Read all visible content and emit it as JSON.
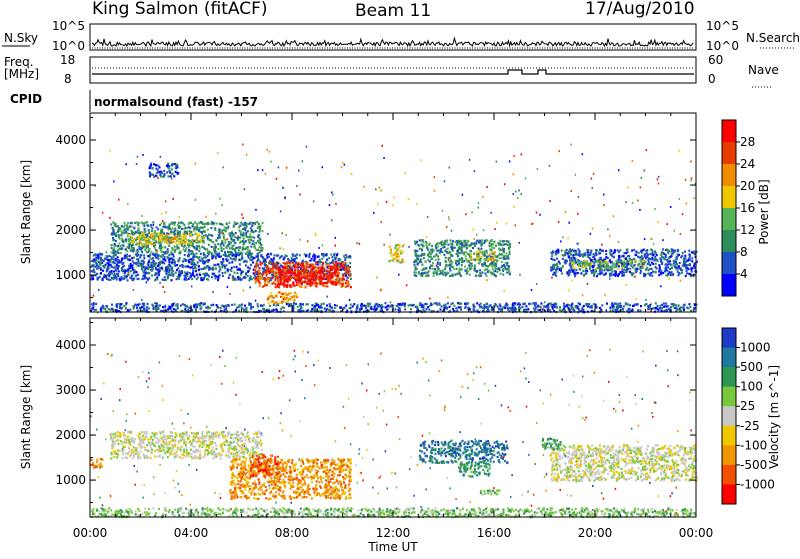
{
  "header": {
    "station": "King Salmon (fitACF)",
    "beam": "Beam 11",
    "date": "17/Aug/2010"
  },
  "top_panels": {
    "nsky_label": "N.Sky",
    "nsearch_label": "N.Search",
    "nsky_ticks": [
      "10^5",
      "10^0"
    ],
    "nsearch_ticks": [
      "10^5",
      "10^0"
    ],
    "freq_label": "Freq.",
    "freq_unit": "[MHz]",
    "freq_ticks": [
      "18",
      "8"
    ],
    "nave_label": "Nave",
    "nave_ticks": [
      "60",
      "0"
    ],
    "cpid_label": "CPID",
    "cpid_value": "normalsound (fast) -157"
  },
  "chart_data": [
    {
      "type": "heatmap",
      "name": "power",
      "ylabel": "Slant Range [km]",
      "xlabel": "Time UT",
      "xlim": [
        0,
        24
      ],
      "ylim": [
        180,
        4600
      ],
      "yticks": [
        "1000",
        "2000",
        "3000",
        "4000"
      ],
      "colorbar": {
        "label": "Power [dB]",
        "ticks": [
          "4",
          "8",
          "12",
          "16",
          "20",
          "24",
          "28"
        ],
        "colors": [
          "#0000ff",
          "#1e50c8",
          "#2d8c5a",
          "#55b455",
          "#f0c800",
          "#f08c00",
          "#e63c00",
          "#ff0000"
        ]
      },
      "regions": [
        {
          "t0": 0.0,
          "t1": 24.0,
          "r0": 200,
          "r1": 400,
          "level": 1
        },
        {
          "t0": 0.0,
          "t1": 10.3,
          "r0": 900,
          "r1": 1500,
          "level": 1
        },
        {
          "t0": 0.8,
          "t1": 6.8,
          "r0": 1500,
          "r1": 2200,
          "level": 2
        },
        {
          "t0": 1.5,
          "t1": 4.5,
          "r0": 1700,
          "r1": 1950,
          "level": 4
        },
        {
          "t0": 6.5,
          "t1": 10.3,
          "r0": 750,
          "r1": 1300,
          "level": 6
        },
        {
          "t0": 7.4,
          "t1": 9.8,
          "r0": 800,
          "r1": 1200,
          "level": 7
        },
        {
          "t0": 7.0,
          "t1": 8.2,
          "r0": 400,
          "r1": 650,
          "level": 5
        },
        {
          "t0": 11.8,
          "t1": 12.4,
          "r0": 1300,
          "r1": 1700,
          "level": 4
        },
        {
          "t0": 12.8,
          "t1": 16.6,
          "r0": 1000,
          "r1": 1800,
          "level": 2
        },
        {
          "t0": 15.0,
          "t1": 16.0,
          "r0": 1350,
          "r1": 1550,
          "level": 4
        },
        {
          "t0": 18.2,
          "t1": 24.0,
          "r0": 1000,
          "r1": 1600,
          "level": 1
        },
        {
          "t0": 19.0,
          "t1": 22.0,
          "r0": 1150,
          "r1": 1350,
          "level": 3
        },
        {
          "t0": 2.3,
          "t1": 3.5,
          "r0": 3200,
          "r1": 3500,
          "level": 1
        }
      ]
    },
    {
      "type": "heatmap",
      "name": "velocity",
      "ylabel": "Slant Range [km]",
      "xlabel": "Time UT",
      "xlim": [
        0,
        24
      ],
      "ylim": [
        180,
        4600
      ],
      "yticks": [
        "1000",
        "2000",
        "3000",
        "4000"
      ],
      "xticks": [
        "00:00",
        "04:00",
        "08:00",
        "12:00",
        "16:00",
        "20:00",
        "00:00"
      ],
      "colorbar": {
        "label": "Velocity [m s^-1]",
        "ticks": [
          "1000",
          "500",
          "100",
          "25",
          "-25",
          "-100",
          "-500",
          "-1000"
        ],
        "colors": [
          "#1e3cc8",
          "#1e78a0",
          "#2d9650",
          "#78c83c",
          "#c8c8c8",
          "#f0c800",
          "#f09600",
          "#f05000",
          "#ff0000"
        ]
      },
      "regions": [
        {
          "t0": 0.0,
          "t1": 24.0,
          "r0": 200,
          "r1": 400,
          "level": 3
        },
        {
          "t0": 0.8,
          "t1": 6.8,
          "r0": 1500,
          "r1": 2100,
          "level": 4
        },
        {
          "t0": 5.5,
          "t1": 10.3,
          "r0": 600,
          "r1": 1500,
          "level": 6
        },
        {
          "t0": 6.3,
          "t1": 7.5,
          "r0": 1100,
          "r1": 1600,
          "level": 7
        },
        {
          "t0": 13.0,
          "t1": 16.5,
          "r0": 1400,
          "r1": 1900,
          "level": 1
        },
        {
          "t0": 14.5,
          "t1": 15.8,
          "r0": 1100,
          "r1": 1400,
          "level": 2
        },
        {
          "t0": 15.4,
          "t1": 16.2,
          "r0": 700,
          "r1": 800,
          "level": 3
        },
        {
          "t0": 18.2,
          "t1": 24.0,
          "r0": 1000,
          "r1": 1800,
          "level": 4
        },
        {
          "t0": 17.8,
          "t1": 18.6,
          "r0": 1700,
          "r1": 1950,
          "level": 2
        },
        {
          "t0": 0.0,
          "t1": 0.5,
          "r0": 1300,
          "r1": 1500,
          "level": 6
        }
      ]
    }
  ],
  "time_axis": {
    "label": "Time UT",
    "ticks": [
      "00:00",
      "04:00",
      "08:00",
      "12:00",
      "16:00",
      "20:00",
      "00:00"
    ]
  }
}
